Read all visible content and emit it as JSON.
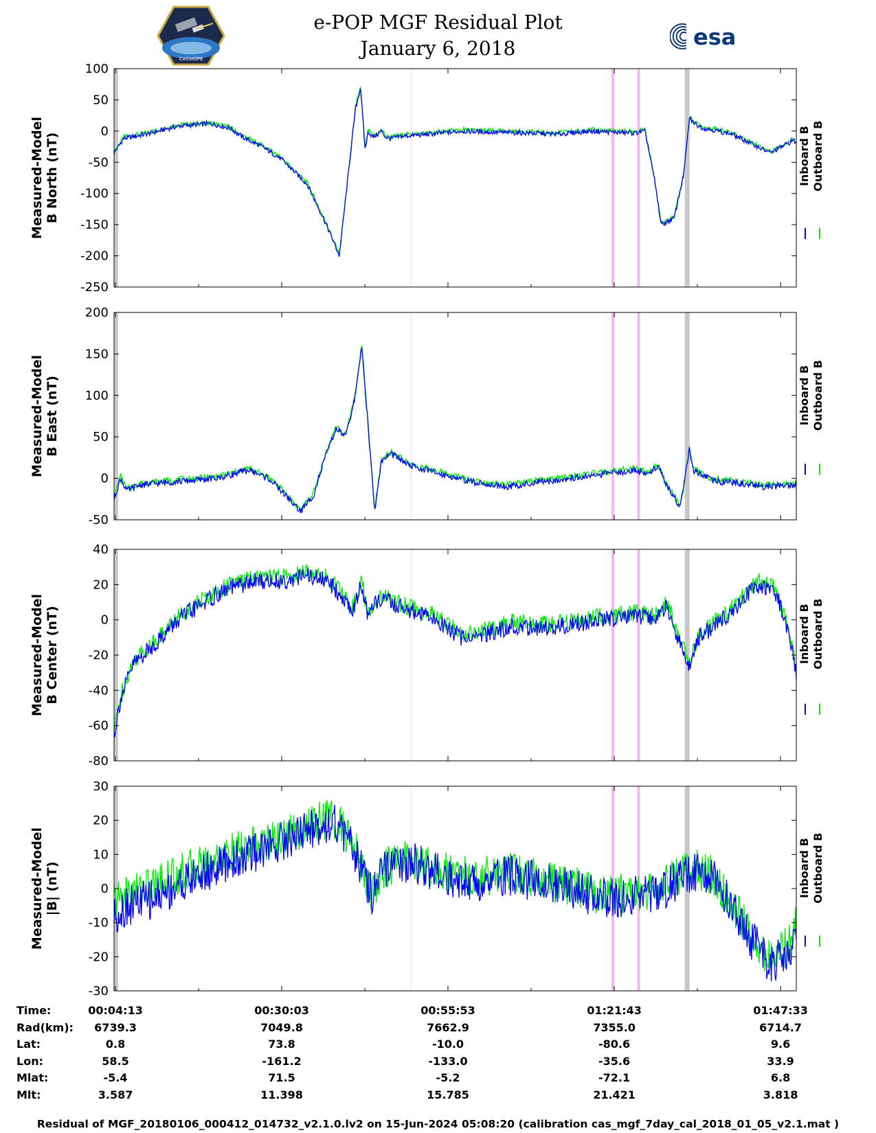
{
  "title": {
    "line1": "e-POP MGF Residual Plot",
    "line2": "January 6, 2018"
  },
  "logos": {
    "left": {
      "icon": "cassiope-mission-badge",
      "text": "CASSIOPE"
    },
    "right": {
      "icon": "esa-logo",
      "text": "esa"
    }
  },
  "colors": {
    "inboard": "#0000ff",
    "outboard": "#00ee00",
    "gray_marker": "#c8c8c8",
    "pink_marker": "#f4b8f0",
    "light_marker": "#e0e0e0"
  },
  "legend": {
    "inboard": "Inboard B",
    "outboard": "Outboard B"
  },
  "chart_data": [
    {
      "type": "line",
      "ylabel_line1": "Measured-Model",
      "ylabel_line2": "B North (nT)",
      "ylim": [
        -250,
        100
      ],
      "yticks": [
        100,
        50,
        0,
        -50,
        -100,
        -150,
        -200,
        -250
      ],
      "x_unit": "minutes since 00:00",
      "xlim": [
        4.0,
        110.0
      ],
      "series": [
        {
          "name": "Inboard B",
          "x": [
            4.0,
            5.5,
            9,
            14,
            19,
            22,
            24,
            27,
            30,
            34,
            37,
            39,
            40.5,
            41.5,
            42.3,
            43,
            43.5,
            44.2,
            45,
            45.6,
            46.2,
            47,
            49,
            53,
            58,
            63,
            68,
            73,
            78,
            82,
            85,
            86.5,
            88,
            89,
            91,
            92.5,
            93.4,
            94.5,
            95.5,
            97,
            100,
            104,
            106,
            109.5,
            110
          ],
          "y": [
            -35,
            -12,
            -5,
            8,
            12,
            5,
            -10,
            -25,
            -45,
            -85,
            -150,
            -200,
            -60,
            35,
            70,
            -30,
            0,
            -10,
            -5,
            0,
            -10,
            -12,
            -8,
            -5,
            0,
            -2,
            -3,
            -5,
            0,
            -2,
            -3,
            0,
            -80,
            -150,
            -140,
            -70,
            20,
            10,
            5,
            2,
            -5,
            -25,
            -35,
            -15,
            -18
          ]
        },
        {
          "name": "Outboard B",
          "x": [
            4.0,
            5.5,
            9,
            14,
            19,
            22,
            24,
            27,
            30,
            34,
            37,
            39,
            40.5,
            41.5,
            42.3,
            43,
            43.5,
            44.2,
            45,
            45.6,
            46.2,
            47,
            49,
            53,
            58,
            63,
            68,
            73,
            78,
            82,
            85,
            86.5,
            88,
            89,
            91,
            92.5,
            93.4,
            94.5,
            95.5,
            97,
            100,
            104,
            106,
            109.5,
            110
          ],
          "y": [
            -33,
            -10,
            -3,
            10,
            13,
            6,
            -8,
            -23,
            -43,
            -83,
            -148,
            -198,
            -58,
            37,
            72,
            -28,
            2,
            -8,
            -3,
            2,
            -8,
            -10,
            -6,
            -3,
            2,
            0,
            -1,
            -3,
            2,
            0,
            -1,
            2,
            -78,
            -148,
            -138,
            -68,
            22,
            12,
            7,
            4,
            -3,
            -23,
            -33,
            -13,
            -16
          ]
        }
      ]
    },
    {
      "type": "line",
      "ylabel_line1": "Measured-Model",
      "ylabel_line2": "B East (nT)",
      "ylim": [
        -50,
        200
      ],
      "yticks": [
        200,
        150,
        100,
        50,
        0,
        -50
      ],
      "x_unit": "minutes since 00:00",
      "xlim": [
        4.0,
        110.0
      ],
      "series": [
        {
          "name": "Inboard B",
          "x": [
            4.0,
            5,
            6,
            8,
            12,
            20,
            25,
            28,
            30,
            33,
            35,
            37,
            38.5,
            40,
            41.5,
            42.5,
            43.5,
            44.5,
            45.5,
            47,
            50,
            55,
            60,
            65,
            70,
            75,
            80,
            85,
            87,
            88.5,
            90,
            92,
            93.4,
            94,
            95,
            97,
            100,
            105,
            110
          ],
          "y": [
            -25,
            0,
            -15,
            -8,
            -5,
            0,
            10,
            0,
            -15,
            -40,
            -20,
            30,
            60,
            50,
            100,
            160,
            60,
            -40,
            20,
            30,
            15,
            5,
            -5,
            -10,
            -5,
            0,
            5,
            10,
            5,
            15,
            -10,
            -35,
            35,
            10,
            5,
            -3,
            -5,
            -10,
            -8
          ]
        },
        {
          "name": "Outboard B",
          "x": [
            4.0,
            5,
            6,
            8,
            12,
            20,
            25,
            28,
            30,
            33,
            35,
            37,
            38.5,
            40,
            41.5,
            42.5,
            43.5,
            44.5,
            45.5,
            47,
            50,
            55,
            60,
            65,
            70,
            75,
            80,
            85,
            87,
            88.5,
            90,
            92,
            93.4,
            94,
            95,
            97,
            100,
            105,
            110
          ],
          "y": [
            -23,
            3,
            -13,
            -6,
            -3,
            2,
            12,
            2,
            -13,
            -38,
            -18,
            32,
            62,
            52,
            102,
            162,
            62,
            -38,
            22,
            32,
            17,
            7,
            -3,
            -8,
            -3,
            2,
            7,
            12,
            7,
            17,
            -8,
            -33,
            37,
            12,
            7,
            -1,
            -3,
            -8,
            -6
          ]
        }
      ]
    },
    {
      "type": "line",
      "ylabel_line1": "Measured-Model",
      "ylabel_line2": "B Center (nT)",
      "ylim": [
        -80,
        40
      ],
      "yticks": [
        40,
        20,
        0,
        -20,
        -40,
        -60,
        -80
      ],
      "x_unit": "minutes since 00:00",
      "xlim": [
        4.0,
        110.0
      ],
      "series": [
        {
          "name": "Inboard B",
          "x": [
            4.0,
            5,
            7,
            10,
            14,
            18,
            22,
            26,
            30,
            34,
            37,
            39,
            41,
            42.5,
            43.5,
            45,
            47,
            50,
            54,
            58,
            62,
            66,
            70,
            75,
            80,
            85,
            88,
            90,
            92,
            93.4,
            95,
            100,
            104,
            107,
            109,
            110
          ],
          "y": [
            -65,
            -45,
            -25,
            -15,
            0,
            10,
            18,
            22,
            22,
            25,
            22,
            15,
            5,
            20,
            0,
            12,
            10,
            5,
            0,
            -10,
            -8,
            -3,
            -5,
            -3,
            0,
            2,
            0,
            8,
            -15,
            -25,
            -10,
            5,
            20,
            15,
            -10,
            -30
          ]
        },
        {
          "name": "Outboard B",
          "x": [
            4.0,
            5,
            7,
            10,
            14,
            18,
            22,
            26,
            30,
            34,
            37,
            39,
            41,
            42.5,
            43.5,
            45,
            47,
            50,
            54,
            58,
            62,
            66,
            70,
            75,
            80,
            85,
            88,
            90,
            92,
            93.4,
            95,
            100,
            104,
            107,
            109,
            110
          ],
          "y": [
            -63,
            -43,
            -23,
            -13,
            2,
            12,
            20,
            24,
            24,
            27,
            24,
            17,
            7,
            22,
            2,
            14,
            12,
            7,
            2,
            -8,
            -6,
            -1,
            -3,
            -1,
            2,
            4,
            2,
            10,
            -13,
            -23,
            -8,
            7,
            22,
            17,
            -8,
            -28
          ]
        }
      ]
    },
    {
      "type": "line",
      "ylabel_line1": "Measured-Model",
      "ylabel_line2": "|B| (nT)",
      "ylim": [
        -30,
        30
      ],
      "yticks": [
        30,
        20,
        10,
        0,
        -10,
        -20,
        -30
      ],
      "x_unit": "minutes since 00:00",
      "xlim": [
        4.0,
        110.0
      ],
      "series": [
        {
          "name": "Inboard B",
          "x": [
            4.0,
            6,
            10,
            15,
            20,
            25,
            30,
            35,
            38,
            40,
            42,
            44,
            46,
            50,
            55,
            60,
            65,
            70,
            75,
            80,
            85,
            88,
            91,
            94,
            97,
            100,
            103,
            106,
            108,
            110
          ],
          "y": [
            -8,
            -5,
            -3,
            2,
            6,
            10,
            14,
            18,
            20,
            15,
            8,
            -2,
            5,
            8,
            4,
            2,
            4,
            2,
            0,
            -3,
            -2,
            -2,
            2,
            5,
            3,
            -5,
            -15,
            -22,
            -20,
            -15
          ]
        },
        {
          "name": "Outboard B",
          "x": [
            4.0,
            6,
            10,
            15,
            20,
            25,
            30,
            35,
            38,
            40,
            42,
            44,
            46,
            50,
            55,
            60,
            65,
            70,
            75,
            80,
            85,
            88,
            91,
            94,
            97,
            100,
            103,
            106,
            108,
            110
          ],
          "y": [
            -4,
            -1,
            1,
            5,
            9,
            12,
            15,
            19,
            21,
            16,
            9,
            -1,
            6,
            9,
            5,
            3,
            5,
            3,
            1,
            -2,
            -1,
            -1,
            3,
            6,
            4,
            -4,
            -14,
            -21,
            -18,
            -11
          ]
        }
      ]
    }
  ],
  "markers_minutes": {
    "gray_start": 4.3,
    "light_line": 50.2,
    "pink_1": 81.5,
    "pink_2": 85.5,
    "gray_end": 93.0
  },
  "x_axis": {
    "tick_minutes": [
      4.22,
      30.05,
      55.88,
      81.72,
      107.55
    ],
    "minor_tick_minutes": [
      17.13,
      42.97,
      68.8,
      94.63
    ]
  },
  "info_table": {
    "row_labels": [
      "Time:",
      "Rad(km):",
      "Lat:",
      "Lon:",
      "Mlat:",
      "Mlt:"
    ],
    "columns": [
      [
        "00:04:13",
        "6739.3",
        "0.8",
        "58.5",
        "-5.4",
        "3.587"
      ],
      [
        "00:30:03",
        "7049.8",
        "73.8",
        "-161.2",
        "71.5",
        "11.398"
      ],
      [
        "00:55:53",
        "7662.9",
        "-10.0",
        "-133.0",
        "-5.2",
        "15.785"
      ],
      [
        "01:21:43",
        "7355.0",
        "-80.6",
        "-35.6",
        "-72.1",
        "21.421"
      ],
      [
        "01:47:33",
        "6714.7",
        "9.6",
        "33.9",
        "6.8",
        "3.818"
      ]
    ]
  },
  "footer": "Residual of MGF_20180106_000412_014732_v2.1.0.lv2 on 15-Jun-2024 05:08:20 (calibration cas_mgf_7day_cal_2018_01_05_v2.1.mat )"
}
